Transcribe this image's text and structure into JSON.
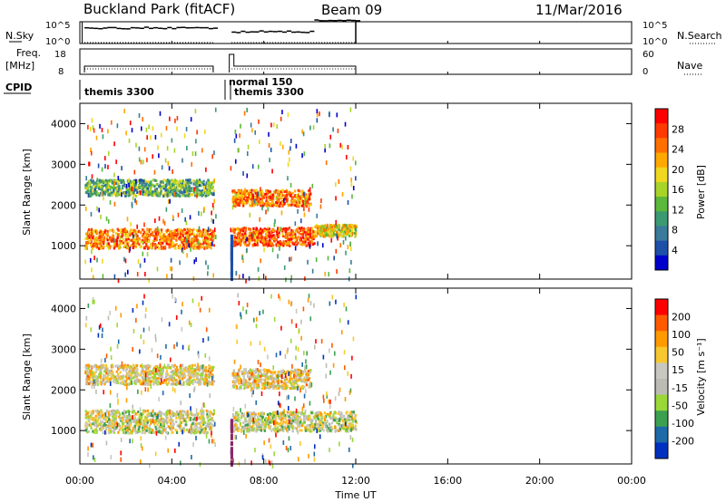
{
  "header": {
    "title": "Buckland Park (fitACF)",
    "beam": "Beam 09",
    "date": "11/Mar/2016"
  },
  "strip_labels": {
    "nsky": "N.Sky",
    "nsearch": "N.Search",
    "freq_line1": "Freq.",
    "freq_line2": "[MHz]",
    "nave": "Nave",
    "cpid": "CPID"
  },
  "strip_ticks": {
    "nsky_top": "10^5",
    "nsky_bottom": "10^0",
    "nsearch_top": "10^5",
    "nsearch_bottom": "10^0",
    "freq_top": "18",
    "freq_bottom": "8",
    "nave_top": "60",
    "nave_bottom": "0"
  },
  "cpid_labels": [
    "themis 3300",
    "normal 150",
    "themis 3300"
  ],
  "chart_data": [
    {
      "type": "heatmap",
      "name": "power",
      "xlabel": "Time UT",
      "ylabel": "Slant Range [km]",
      "xlim": [
        0,
        24
      ],
      "ylim": [
        180,
        4500
      ],
      "yticks": [
        "1000",
        "2000",
        "3000",
        "4000"
      ],
      "colorbar_label": "Power [dB]",
      "colorbar_ticks": [
        "28",
        "24",
        "20",
        "16",
        "12",
        "8",
        "4"
      ],
      "colorscale": [
        "#0000cc",
        "#1e50a8",
        "#3a7a9a",
        "#3c9a72",
        "#5cb83c",
        "#a8d428",
        "#f0d820",
        "#ffa800",
        "#ff7000",
        "#ff3a00",
        "#ff0000"
      ],
      "data_extent_hours": [
        0,
        12
      ],
      "bands": [
        {
          "range_km": 1200,
          "width_km": 300,
          "t0": 0.2,
          "t1": 5.8,
          "power_db": 24
        },
        {
          "range_km": 2450,
          "width_km": 250,
          "t0": 0.2,
          "t1": 5.8,
          "power_db": 12
        },
        {
          "range_km": 2200,
          "width_km": 250,
          "t0": 6.6,
          "t1": 10.0,
          "power_db": 24
        },
        {
          "range_km": 1250,
          "width_km": 280,
          "t0": 6.6,
          "t1": 10.2,
          "power_db": 26
        },
        {
          "range_km": 1400,
          "width_km": 180,
          "t0": 10.2,
          "t1": 12.0,
          "power_db": 18
        }
      ]
    },
    {
      "type": "heatmap",
      "name": "velocity",
      "xlabel": "Time UT",
      "ylabel": "Slant Range [km]",
      "xlim": [
        0,
        24
      ],
      "ylim": [
        180,
        4500
      ],
      "xticks": [
        "00:00",
        "04:00",
        "08:00",
        "12:00",
        "16:00",
        "20:00",
        "00:00"
      ],
      "yticks": [
        "1000",
        "2000",
        "3000",
        "4000"
      ],
      "colorbar_label": "Velocity [m s⁻¹]",
      "colorbar_ticks": [
        "200",
        "100",
        "50",
        "15",
        "-15",
        "-50",
        "-100",
        "-200"
      ],
      "colorscale": [
        "#ff0000",
        "#ff5a00",
        "#ff9a00",
        "#f8c830",
        "#c8c8c0",
        "#bcbcb4",
        "#9ad838",
        "#3ca050",
        "#1e6aa8",
        "#0030c0"
      ],
      "data_extent_hours": [
        0,
        12
      ],
      "bands": [
        {
          "range_km": 1250,
          "width_km": 350,
          "t0": 0.2,
          "t1": 5.8,
          "velocity": 0
        },
        {
          "range_km": 2400,
          "width_km": 300,
          "t0": 0.2,
          "t1": 5.8,
          "velocity": -30
        },
        {
          "range_km": 2300,
          "width_km": 300,
          "t0": 6.6,
          "t1": 10.0,
          "velocity": -40
        },
        {
          "range_km": 1250,
          "width_km": 300,
          "t0": 6.6,
          "t1": 12.0,
          "velocity": 0
        }
      ]
    }
  ]
}
